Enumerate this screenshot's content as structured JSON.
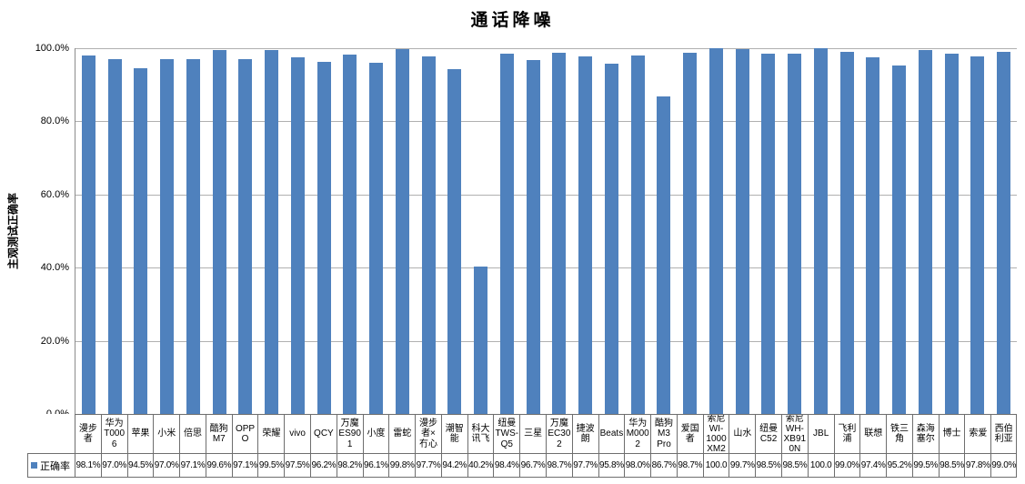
{
  "title": "通话降噪",
  "y_axis": {
    "label": "主观测试正确率",
    "ticks": [
      "100.0%",
      "80.0%",
      "60.0%",
      "40.0%",
      "20.0%",
      "0.0%"
    ]
  },
  "legend": {
    "label": "正确率"
  },
  "colors": {
    "bar": "#4F81BD",
    "gridline": "#B0B0B0",
    "axis": "#8C8C8C",
    "table_border": "#6E6E6E",
    "background": "#FFFFFF"
  },
  "chart_data": {
    "type": "bar",
    "title": "通话降噪",
    "xlabel": "",
    "ylabel": "主观测试正确率",
    "ylim": [
      0,
      100
    ],
    "y_tick_labels": [
      "0.0%",
      "20.0%",
      "40.0%",
      "60.0%",
      "80.0%",
      "100.0%"
    ],
    "grid": true,
    "legend_position": "table-bottom-left",
    "categories": [
      "漫步者",
      "华为T0006",
      "苹果",
      "小米",
      "倍思",
      "酷狗M7",
      "OPPO",
      "荣耀",
      "vivo",
      "QCY",
      "万魔ES901",
      "小度",
      "雷蛇",
      "漫步者×冇心",
      "潮智能",
      "科大讯飞",
      "纽曼TWS-Q5",
      "三星",
      "万魔EC302",
      "捷波朗",
      "Beats",
      "华为M0002",
      "酷狗M3 Pro",
      "爱国者",
      "索尼WI-1000XM2",
      "山水",
      "纽曼C52",
      "索尼WH-XB910N",
      "JBL",
      "飞利浦",
      "联想",
      "铁三角",
      "森海塞尔",
      "博士",
      "索爱",
      "西伯利亚"
    ],
    "category_display": [
      "漫步\n者",
      "华为\nT0006",
      "苹果",
      "小米",
      "倍思",
      "酷狗\nM7",
      "OPPO",
      "荣耀",
      "vivo",
      "QCY",
      "万魔\nES901",
      "小度",
      "雷蛇",
      "漫步\n者×\n冇心",
      "潮智\n能",
      "科大\n讯飞",
      "纽曼\nTWS-\nQ5",
      "三星",
      "万魔\nEC30\n2",
      "捷波\n朗",
      "Beats",
      "华为\nM000\n2",
      "酷狗\nM3\nPro",
      "爱国\n者",
      "索尼\nWI-\n1000\nXM2",
      "山水",
      "纽曼\nC52",
      "索尼\nWH-\nXB91\n0N",
      "JBL",
      "飞利\n浦",
      "联想",
      "铁三\n角",
      "森海\n塞尔",
      "博士",
      "索爱",
      "西伯\n利亚"
    ],
    "series": [
      {
        "name": "正确率",
        "values": [
          98.1,
          97.0,
          94.5,
          97.0,
          97.1,
          99.6,
          97.1,
          99.5,
          97.5,
          96.2,
          98.2,
          96.1,
          99.8,
          97.7,
          94.2,
          40.2,
          98.4,
          96.7,
          98.7,
          97.7,
          95.8,
          98.0,
          86.7,
          98.7,
          100.0,
          99.7,
          98.5,
          98.5,
          100.0,
          99.0,
          97.4,
          95.2,
          99.5,
          98.5,
          97.8,
          99.0
        ]
      }
    ],
    "value_labels": [
      "98.1%",
      "97.0%",
      "94.5%",
      "97.0%",
      "97.1%",
      "99.6%",
      "97.1%",
      "99.5%",
      "97.5%",
      "96.2%",
      "98.2%",
      "96.1%",
      "99.8%",
      "97.7%",
      "94.2%",
      "40.2%",
      "98.4%",
      "96.7%",
      "98.7%",
      "97.7%",
      "95.8%",
      "98.0%",
      "86.7%",
      "98.7%",
      "100.0",
      "99.7%",
      "98.5%",
      "98.5%",
      "100.0",
      "99.0%",
      "97.4%",
      "95.2%",
      "99.5%",
      "98.5%",
      "97.8%",
      "99.0%"
    ]
  }
}
